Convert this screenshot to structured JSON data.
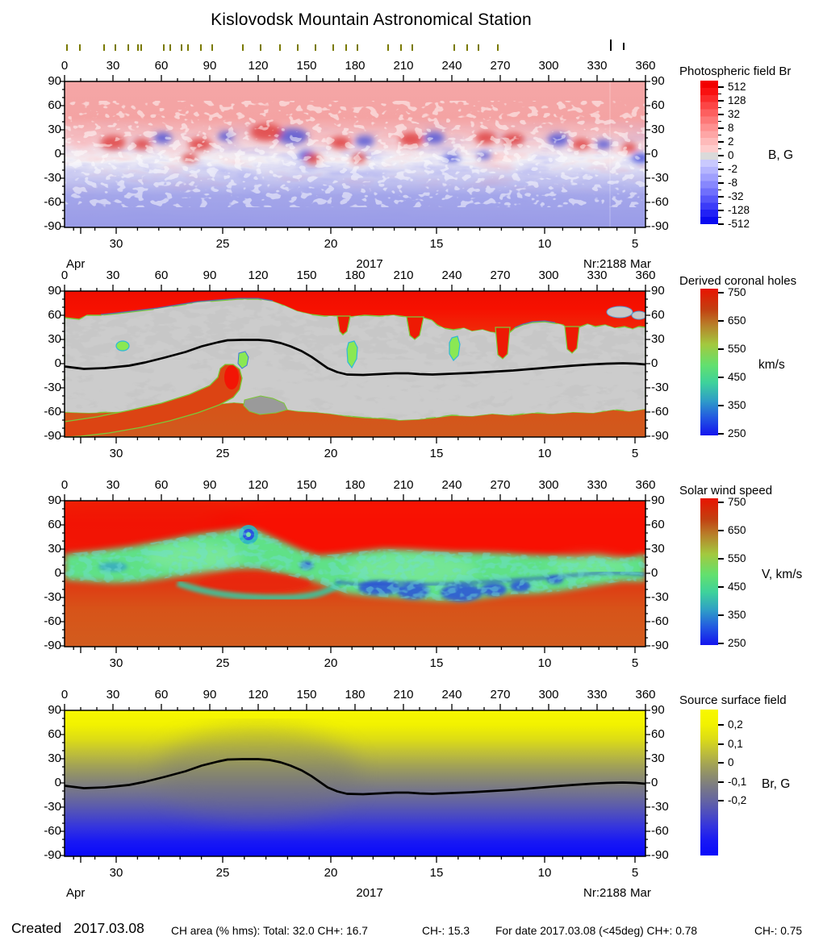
{
  "title": "Kislovodsk Mountain Astronomical Station",
  "axes": {
    "longitude_ticks": [
      0,
      30,
      60,
      90,
      120,
      150,
      180,
      210,
      240,
      270,
      300,
      330,
      360
    ],
    "latitude_ticks": [
      90,
      60,
      30,
      0,
      -30,
      -60,
      -90
    ],
    "day_ticks": [
      30,
      25,
      20,
      15,
      10,
      5
    ]
  },
  "date_row": {
    "left_month": "Apr",
    "year": "2017",
    "rotation": "Nr:2188",
    "right_month": "Mar"
  },
  "panels": [
    {
      "title": "Photospheric field Br",
      "unit": "B, G",
      "colorbar_ticks": [
        "512",
        "128",
        "32",
        "8",
        "2",
        "0",
        "-2",
        "-8",
        "-32",
        "-128",
        "-512"
      ]
    },
    {
      "title": "Derived coronal holes",
      "unit": "km/s",
      "colorbar_ticks": [
        "750",
        "650",
        "550",
        "450",
        "350",
        "250"
      ]
    },
    {
      "title": "Solar wind speed",
      "unit": "V, km/s",
      "colorbar_ticks": [
        "750",
        "650",
        "550",
        "450",
        "350",
        "250"
      ]
    },
    {
      "title": "Source surface field",
      "unit": "Br, G",
      "colorbar_ticks": [
        "0,2",
        "0,1",
        "0",
        "-0,1",
        "-0,2"
      ]
    }
  ],
  "status_bar": {
    "created_label": "Created",
    "created_date": "2017.03.08",
    "segments": [
      "CH area (% hms): Total: 32.0 CH+: 16.7",
      "CH-: 15.3",
      "For date 2017.03.08 (<45deg) CH+: 0.78",
      "CH-: 0.75"
    ],
    "values": {
      "ch_area_total": 32.0,
      "ch_area_plus": 16.7,
      "ch_area_minus": 15.3,
      "for_date": "2017.03.08",
      "lt45deg_ch_plus": 0.78,
      "lt45deg_ch_minus": 0.75
    }
  },
  "colors": {
    "positive_field": "#f20000",
    "negative_field": "#0b0bf0",
    "fast_wind": "#e81400",
    "slow_wind": "#1414ee",
    "pos_surface": "#f8f800",
    "neg_surface": "#0a0afa",
    "coronal_hole_gray": "#c7c7c7",
    "coronal_hole_dark_gray": "#9a9a9a",
    "ch_border_green": "#7cc838",
    "neutral_line": "#000000",
    "obs_tick": "#7a7a00"
  },
  "chart_data": {
    "type": "heatmap",
    "x_axis": {
      "range": [
        0,
        360
      ],
      "ticks": [
        0,
        30,
        60,
        90,
        120,
        150,
        180,
        210,
        240,
        270,
        300,
        330,
        360
      ]
    },
    "y_axis": {
      "range": [
        -90,
        90
      ],
      "ticks": [
        90,
        60,
        30,
        0,
        -30,
        -60,
        -90
      ]
    },
    "date_axis": {
      "days": [
        30,
        25,
        20,
        15,
        10,
        5
      ],
      "left_month": "Apr",
      "right_month": "Mar",
      "year": "2017",
      "carrington_rotation": "Nr:2188"
    },
    "maps": [
      {
        "title": "Photospheric field Br",
        "unit": "B, G",
        "palette": "red-gray-blue discrete",
        "colorbar_values": [
          512,
          128,
          32,
          8,
          2,
          0,
          -2,
          -8,
          -32,
          -128,
          -512
        ],
        "pattern": "positive (red) polarity dominates north of +45 deg, negative (blue) south of -30 deg, mottled active-region band between"
      },
      {
        "title": "Derived coronal holes",
        "unit": "km/s",
        "palette": "red-green-blue continuous",
        "colorbar_values": [
          750,
          650,
          550,
          450,
          350,
          250
        ],
        "pattern": "fast-wind red polar caps, gray closed-field belt between about +60 and -60 deg with red coronal-hole tongues and small green patches"
      },
      {
        "title": "Solar wind speed",
        "unit": "V, km/s",
        "palette": "red-green-blue continuous",
        "colorbar_values": [
          750,
          650,
          550,
          450,
          350,
          250
        ],
        "pattern": "slow-wind green/blue belt tracing the neutral line over a fast red background"
      },
      {
        "title": "Source surface field",
        "unit": "Br, G",
        "palette": "yellow-gray-blue continuous",
        "colorbar_values": [
          0.2,
          0.1,
          0,
          -0.1,
          -0.2
        ],
        "pattern": "positive yellow field in the north, negative blue in the south, separated by the neutral line"
      }
    ],
    "neutral_line_lon_lat": [
      [
        0,
        -3
      ],
      [
        12,
        -6
      ],
      [
        25,
        -5
      ],
      [
        40,
        -2
      ],
      [
        50,
        2
      ],
      [
        62,
        8
      ],
      [
        75,
        15
      ],
      [
        85,
        22
      ],
      [
        95,
        27
      ],
      [
        101,
        29.5
      ],
      [
        110,
        30
      ],
      [
        120,
        30
      ],
      [
        127,
        29
      ],
      [
        134,
        26
      ],
      [
        140,
        22
      ],
      [
        147,
        16
      ],
      [
        153,
        9
      ],
      [
        158,
        2
      ],
      [
        163,
        -5
      ],
      [
        169,
        -10
      ],
      [
        175,
        -13
      ],
      [
        185,
        -13.5
      ],
      [
        195,
        -12.5
      ],
      [
        205,
        -11.5
      ],
      [
        213,
        -11.5
      ],
      [
        220,
        -12.5
      ],
      [
        228,
        -13
      ],
      [
        240,
        -12
      ],
      [
        252,
        -11
      ],
      [
        265,
        -9.5
      ],
      [
        278,
        -8
      ],
      [
        290,
        -6
      ],
      [
        302,
        -4
      ],
      [
        315,
        -2
      ],
      [
        326,
        -0.5
      ],
      [
        336,
        0.5
      ],
      [
        346,
        1
      ],
      [
        354,
        0.5
      ],
      [
        360,
        -0.5
      ]
    ],
    "observation_marks_lon": {
      "olive": [
        1,
        9,
        24,
        31,
        39,
        45,
        47,
        61,
        65,
        72,
        76,
        84,
        91,
        110,
        121,
        133,
        144,
        155,
        166,
        174,
        181,
        200,
        208,
        215,
        241,
        249,
        256,
        268
      ],
      "black": [
        338,
        346
      ]
    }
  }
}
